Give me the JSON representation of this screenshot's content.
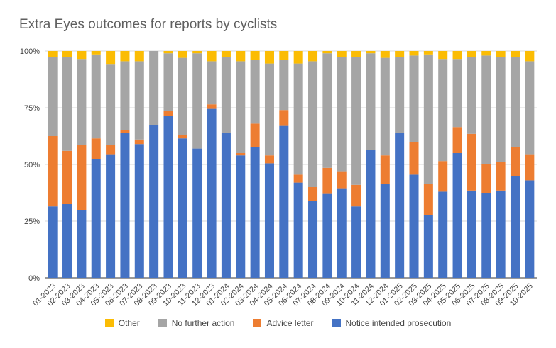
{
  "chart_data": {
    "type": "bar",
    "stacked": true,
    "title": "Extra Eyes outcomes for reports by cyclists",
    "xlabel": "",
    "ylabel": "",
    "ylim": [
      0,
      100
    ],
    "ytick_labels": [
      "0%",
      "25%",
      "50%",
      "75%",
      "100%"
    ],
    "categories": [
      "01-2023",
      "02-2023",
      "03-2023",
      "04-2023",
      "05-2023",
      "06-2023",
      "07-2023",
      "08-2023",
      "09-2023",
      "10-2023",
      "11-2023",
      "12-2023",
      "01-2024",
      "02-2024",
      "03-2024",
      "04-2024",
      "05-2024",
      "06-2024",
      "07-2024",
      "08-2024",
      "09-2024",
      "10-2024",
      "11-2024",
      "12-2024",
      "01-2025",
      "02-2025",
      "03-2025",
      "04-2025",
      "05-2025",
      "06-2025",
      "07-2025",
      "08-2025",
      "09-2025",
      "10-2025"
    ],
    "series": [
      {
        "name": "Notice intended prosecution",
        "color": "#4472c4",
        "values": [
          31.5,
          32.5,
          30,
          52.5,
          54.5,
          64,
          59,
          67.5,
          71.5,
          61.5,
          57,
          74.5,
          64,
          54,
          57.5,
          50.5,
          67,
          42,
          34,
          37,
          39.5,
          31.5,
          56.5,
          41.5,
          64,
          45.5,
          27.5,
          38,
          55,
          38.5,
          37.5,
          38.5,
          45,
          43
        ]
      },
      {
        "name": "Advice letter",
        "color": "#ed7d31",
        "values": [
          31,
          23.5,
          28.5,
          9,
          4,
          1,
          2,
          0,
          2,
          1.5,
          0,
          2,
          0,
          1,
          10.5,
          3.5,
          7,
          3.5,
          6,
          11.5,
          7.5,
          9.5,
          0,
          12.5,
          0,
          14.5,
          14,
          13.5,
          11.5,
          25,
          12.5,
          12.5,
          12.5,
          11.5
        ]
      },
      {
        "name": "No further action",
        "color": "#a5a5a5",
        "values": [
          35,
          41.5,
          38,
          37,
          35.5,
          30.5,
          34.5,
          32.5,
          25.5,
          34,
          42,
          19,
          33.5,
          40.5,
          28,
          40.5,
          22,
          49,
          55.5,
          50.5,
          50.5,
          56.5,
          42.5,
          43,
          33.5,
          38,
          57,
          45,
          30,
          34,
          48,
          46.5,
          40,
          41
        ]
      },
      {
        "name": "Other",
        "color": "#fbbc04",
        "values": [
          2.5,
          2.5,
          3.5,
          1.5,
          6,
          4.5,
          4.5,
          0,
          1,
          3,
          1,
          4.5,
          2.5,
          4.5,
          4,
          5.5,
          4,
          5.5,
          4.5,
          1,
          2.5,
          2.5,
          1,
          3,
          2.5,
          2,
          1.5,
          3.5,
          3.5,
          2.5,
          2,
          2.5,
          2.5,
          4.5
        ]
      }
    ],
    "legend_position": "bottom",
    "grid": true
  }
}
